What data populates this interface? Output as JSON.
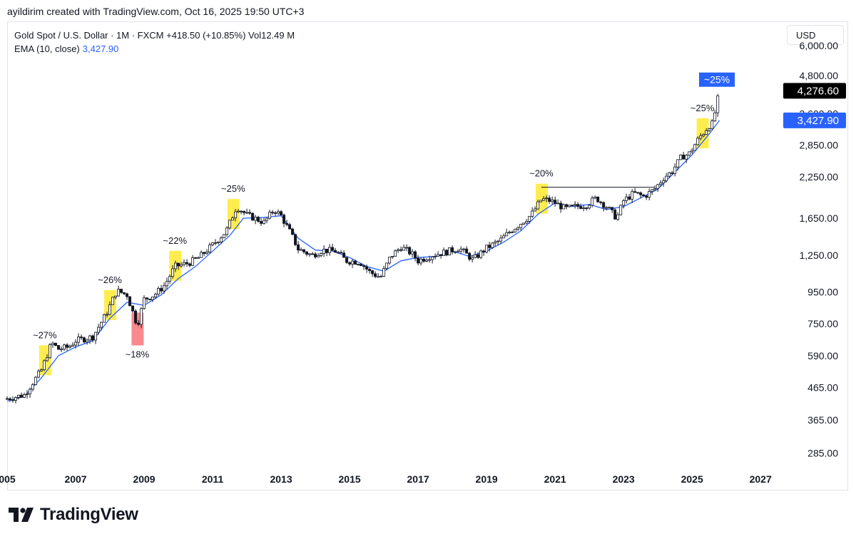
{
  "header": {
    "attribution": "ayildirim created with TradingView.com, Oct 16, 2025 19:50 UTC+3"
  },
  "legend": {
    "symbol_line": "Gold Spot / U.S. Dollar · 1M · FXCM  +418.50 (+10.85%)  Vol12.49 M",
    "ema_label": "EMA (10, close)",
    "ema_value": "3,427.90"
  },
  "currency_button": "USD",
  "footer": {
    "brand": "TradingView"
  },
  "chart_data": {
    "type": "line",
    "title": "",
    "scale": "log",
    "ylim": [
      250,
      7000
    ],
    "xlim": [
      2005.0,
      2027.6
    ],
    "grid": false,
    "y_ticks": [
      "6,000.00",
      "4,800.00",
      "3,600.00",
      "2,850.00",
      "2,250.00",
      "1,650.00",
      "1,250.00",
      "950.00",
      "750.00",
      "590.00",
      "465.00",
      "365.00",
      "285.00"
    ],
    "y_tick_values": [
      6000,
      4800,
      3600,
      2850,
      2250,
      1650,
      1250,
      950,
      750,
      590,
      465,
      365,
      285
    ],
    "x_ticks": [
      "005",
      "2007",
      "2009",
      "2011",
      "2013",
      "2015",
      "2017",
      "2019",
      "2021",
      "2023",
      "2025",
      "2027"
    ],
    "x_tick_values": [
      2005,
      2007,
      2009,
      2011,
      2013,
      2015,
      2017,
      2019,
      2021,
      2023,
      2025,
      2027
    ],
    "series": [
      {
        "kind": "monthly price",
        "color": "#131722",
        "x": [
          2005.0,
          2005.5,
          2006.0,
          2006.3,
          2006.5,
          2006.8,
          2007.0,
          2007.5,
          2007.9,
          2008.2,
          2008.5,
          2008.8,
          2009.0,
          2009.3,
          2009.6,
          2009.9,
          2010.3,
          2010.6,
          2011.0,
          2011.4,
          2011.7,
          2012.0,
          2012.5,
          2012.8,
          2013.0,
          2013.3,
          2013.5,
          2013.9,
          2014.2,
          2014.6,
          2014.9,
          2015.3,
          2015.6,
          2015.9,
          2016.2,
          2016.5,
          2016.8,
          2017.0,
          2017.4,
          2017.8,
          2018.2,
          2018.6,
          2019.0,
          2019.4,
          2019.7,
          2020.0,
          2020.3,
          2020.6,
          2020.8,
          2021.0,
          2021.3,
          2021.6,
          2021.9,
          2022.2,
          2022.5,
          2022.8,
          2023.0,
          2023.3,
          2023.6,
          2023.9,
          2024.2,
          2024.4,
          2024.7,
          2024.9,
          2025.2,
          2025.5,
          2025.6,
          2025.8
        ],
        "values": [
          428,
          440,
          530,
          650,
          620,
          630,
          660,
          680,
          810,
          960,
          930,
          740,
          900,
          930,
          1000,
          1150,
          1180,
          1230,
          1350,
          1500,
          1800,
          1690,
          1600,
          1760,
          1680,
          1460,
          1310,
          1250,
          1300,
          1290,
          1200,
          1190,
          1100,
          1060,
          1240,
          1330,
          1270,
          1200,
          1250,
          1280,
          1320,
          1210,
          1320,
          1400,
          1500,
          1590,
          1690,
          1900,
          1890,
          1850,
          1770,
          1800,
          1820,
          1920,
          1800,
          1650,
          1880,
          1990,
          1940,
          2050,
          2250,
          2330,
          2620,
          2660,
          3000,
          3300,
          3350,
          4276.6
        ]
      },
      {
        "name": "EMA (10, close)",
        "color": "#2962ff",
        "x": [
          2005.0,
          2005.5,
          2006.0,
          2006.5,
          2007.0,
          2007.5,
          2008.0,
          2008.5,
          2009.0,
          2009.5,
          2010.0,
          2010.5,
          2011.0,
          2011.5,
          2011.9,
          2012.5,
          2013.0,
          2013.5,
          2014.0,
          2014.5,
          2015.0,
          2015.5,
          2016.0,
          2016.5,
          2017.0,
          2017.5,
          2018.0,
          2018.5,
          2019.0,
          2019.5,
          2020.0,
          2020.5,
          2021.0,
          2021.5,
          2022.0,
          2022.5,
          2023.0,
          2023.5,
          2024.0,
          2024.5,
          2025.0,
          2025.5,
          2025.8
        ],
        "values": [
          420,
          435,
          500,
          590,
          630,
          660,
          780,
          880,
          860,
          930,
          1050,
          1150,
          1290,
          1450,
          1650,
          1660,
          1680,
          1420,
          1300,
          1290,
          1230,
          1150,
          1110,
          1200,
          1230,
          1240,
          1290,
          1240,
          1290,
          1380,
          1500,
          1700,
          1850,
          1800,
          1830,
          1760,
          1800,
          1920,
          2050,
          2330,
          2650,
          3100,
          3427.9
        ]
      }
    ],
    "annotations": [
      {
        "text": "~27%",
        "x": 2006.1,
        "y": 650,
        "highlight": "yellow"
      },
      {
        "text": "~26%",
        "x": 2008.0,
        "y": 880,
        "highlight": "yellow"
      },
      {
        "text": "~18%",
        "x": 2008.8,
        "y": 780,
        "highlight": "red"
      },
      {
        "text": "~22%",
        "x": 2009.9,
        "y": 1150,
        "highlight": "yellow"
      },
      {
        "text": "~25%",
        "x": 2011.6,
        "y": 1800,
        "highlight": "yellow"
      },
      {
        "text": "~20%",
        "x": 2020.6,
        "y": 1930,
        "highlight": "yellow"
      },
      {
        "text": "~25%",
        "x": 2025.3,
        "y": 3250,
        "highlight": "yellow"
      }
    ],
    "resistance_line": {
      "from_x": 2020.6,
      "to_x": 2023.9,
      "y": 2080
    },
    "price_labels": [
      {
        "text": "4,276.60",
        "value": 4276.6,
        "bg": "#000000",
        "fg": "#ffffff"
      },
      {
        "text": "3,427.90",
        "value": 3427.9,
        "bg": "#2962ff",
        "fg": "#ffffff"
      }
    ],
    "projection_label": {
      "text": "~25%",
      "value": 4650,
      "bg": "#2962ff",
      "fg": "#ffffff"
    }
  }
}
